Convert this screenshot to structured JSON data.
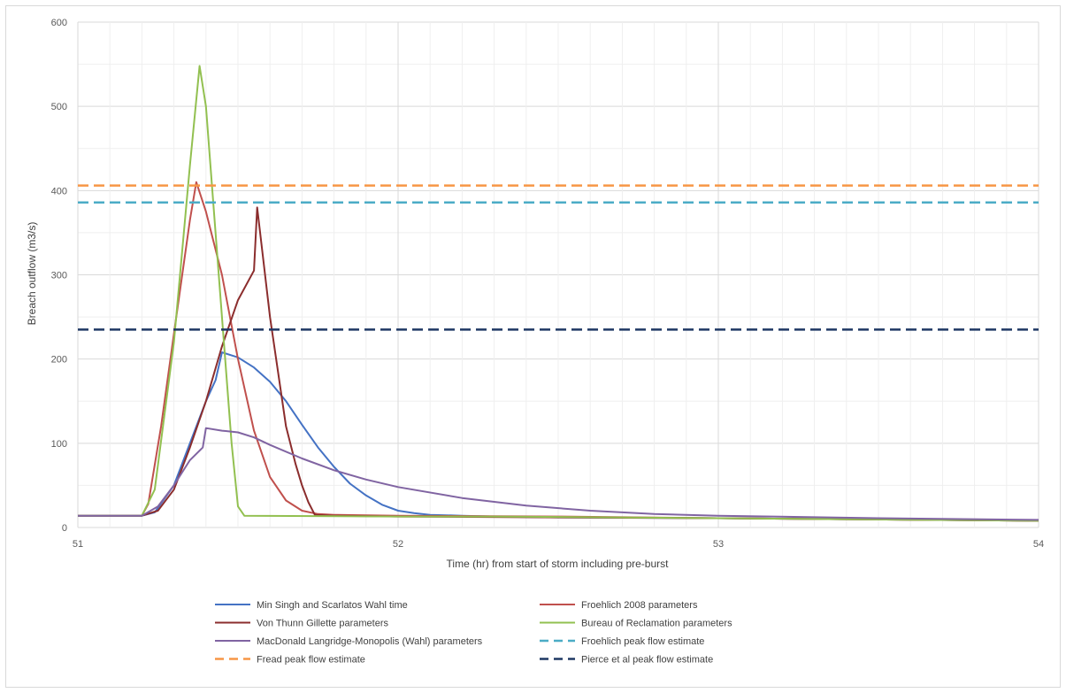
{
  "chart_data": {
    "type": "line",
    "xlabel": "Time (hr) from start of storm including pre-burst",
    "ylabel": "Breach outflow (m3/s)",
    "xlim": [
      51,
      54
    ],
    "ylim": [
      0,
      600
    ],
    "xticks": [
      51,
      52,
      53,
      54
    ],
    "yticks": [
      0,
      100,
      200,
      300,
      400,
      500,
      600
    ],
    "xtick_labels": [
      "51",
      "52",
      "53",
      "54"
    ],
    "ytick_labels": [
      "0",
      "100",
      "200",
      "300",
      "400",
      "500",
      "600"
    ],
    "grid": true,
    "legend_position": "bottom",
    "series": [
      {
        "name": "Min Singh and Scarlatos Wahl time",
        "color": "#4472C4",
        "dash": false,
        "x": [
          51,
          51.2,
          51.24,
          51.3,
          51.35,
          51.4,
          51.43,
          51.45,
          51.5,
          51.55,
          51.6,
          51.65,
          51.7,
          51.75,
          51.8,
          51.85,
          51.9,
          51.95,
          52.0,
          52.05,
          52.1,
          52.2,
          52.3,
          52.5,
          53.0,
          54.0
        ],
        "y": [
          14,
          14,
          18,
          50,
          100,
          150,
          175,
          208,
          202,
          190,
          173,
          150,
          122,
          95,
          72,
          52,
          38,
          27,
          20,
          17,
          15,
          14,
          13,
          12,
          11,
          8
        ]
      },
      {
        "name": "Froehlich 2008 parameters",
        "color": "#C0504D",
        "dash": false,
        "x": [
          51,
          51.2,
          51.22,
          51.26,
          51.3,
          51.35,
          51.37,
          51.4,
          51.45,
          51.5,
          51.55,
          51.6,
          51.65,
          51.7,
          51.75,
          51.8,
          52.0,
          52.5,
          53.0,
          54.0
        ],
        "y": [
          14,
          14,
          28,
          120,
          230,
          365,
          410,
          375,
          300,
          200,
          115,
          60,
          32,
          20,
          16,
          15,
          14,
          13,
          11,
          8
        ]
      },
      {
        "name": "Von Thunn Gillette parameters",
        "color": "#8B2D2D",
        "dash": false,
        "x": [
          51,
          51.2,
          51.25,
          51.3,
          51.35,
          51.4,
          51.45,
          51.5,
          51.55,
          51.56,
          51.6,
          51.65,
          51.68,
          51.7,
          51.72,
          51.74,
          51.8,
          52.0,
          53.0,
          54.0
        ],
        "y": [
          14,
          14,
          20,
          45,
          95,
          150,
          215,
          270,
          305,
          380,
          250,
          120,
          75,
          50,
          30,
          15,
          14,
          13,
          11,
          8
        ]
      },
      {
        "name": "Bureau of Reclamation parameters",
        "color": "#92C050",
        "dash": false,
        "x": [
          51,
          51.2,
          51.24,
          51.3,
          51.35,
          51.38,
          51.4,
          51.45,
          51.48,
          51.5,
          51.52,
          52.0,
          52.3,
          53.0,
          54.0
        ],
        "y": [
          14,
          14,
          45,
          220,
          430,
          548,
          500,
          250,
          100,
          25,
          14,
          13,
          13,
          11,
          8
        ]
      },
      {
        "name": "MacDonald Langridge-Monopolis (Wahl) parameters",
        "color": "#8064A2",
        "dash": false,
        "x": [
          51,
          51.2,
          51.25,
          51.3,
          51.35,
          51.39,
          51.4,
          51.45,
          51.5,
          51.55,
          51.6,
          51.7,
          51.8,
          51.9,
          52.0,
          52.2,
          52.4,
          52.6,
          52.8,
          53.0,
          53.5,
          54.0
        ],
        "y": [
          14,
          14,
          25,
          50,
          80,
          95,
          118,
          115,
          113,
          107,
          98,
          82,
          68,
          57,
          48,
          35,
          26,
          20,
          16,
          14,
          11,
          9
        ]
      },
      {
        "name": "Froehlich peak flow estimate",
        "color": "#4BACC6",
        "dash": true,
        "x": [
          51,
          54
        ],
        "y": [
          386,
          386
        ]
      },
      {
        "name": "Fread peak flow estimate",
        "color": "#F79646",
        "dash": true,
        "x": [
          51,
          54
        ],
        "y": [
          406,
          406
        ]
      },
      {
        "name": "Pierce et al peak flow estimate",
        "color": "#1F3864",
        "dash": true,
        "x": [
          51,
          54
        ],
        "y": [
          235,
          235
        ]
      }
    ]
  }
}
